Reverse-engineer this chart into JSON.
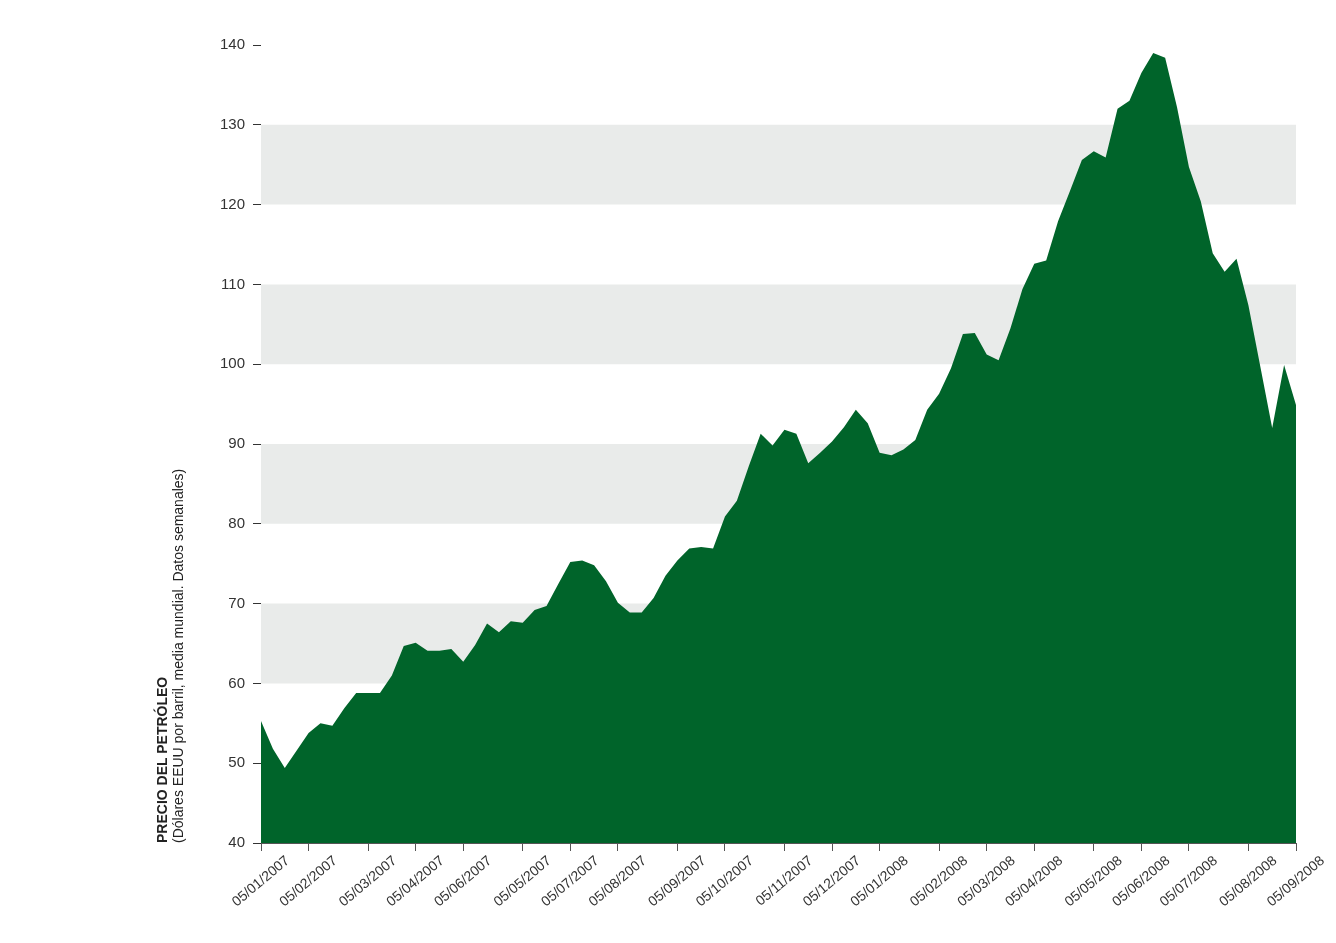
{
  "chart_data": {
    "type": "area",
    "ylabel": "PRECIO DEL PETRÓLEO\n(Dólares EEUU por barril, media mundial. Datos semanales)",
    "categories": [
      "05/01/2007",
      null,
      null,
      null,
      "05/02/2007",
      null,
      null,
      null,
      null,
      "05/03/2007",
      null,
      null,
      null,
      "05/04/2007",
      null,
      null,
      null,
      "05/06/2007",
      null,
      null,
      null,
      null,
      "05/05/2007",
      null,
      null,
      null,
      "05/07/2007",
      null,
      null,
      null,
      "05/08/2007",
      null,
      null,
      null,
      null,
      "05/09/2007",
      null,
      null,
      null,
      "05/10/2007",
      null,
      null,
      null,
      null,
      "05/11/2007",
      null,
      null,
      null,
      "05/12/2007",
      null,
      null,
      null,
      "05/01/2008",
      null,
      null,
      null,
      null,
      "05/02/2008",
      null,
      null,
      null,
      "05/03/2008",
      null,
      null,
      null,
      "05/04/2008",
      null,
      null,
      null,
      null,
      "05/05/2008",
      null,
      null,
      null,
      "05/06/2008",
      null,
      null,
      null,
      "05/07/2008",
      null,
      null,
      null,
      null,
      "05/08/2008",
      null,
      null,
      null,
      "05/09/2008"
    ],
    "values": [
      55.3,
      51.8,
      49.4,
      51.6,
      53.8,
      55.0,
      54.7,
      56.9,
      58.8,
      58.8,
      58.8,
      61.0,
      64.7,
      65.1,
      64.1,
      64.1,
      64.3,
      62.7,
      64.8,
      67.5,
      66.4,
      67.8,
      67.6,
      69.2,
      69.7,
      72.5,
      75.2,
      75.4,
      74.8,
      72.8,
      70.1,
      68.9,
      68.9,
      70.7,
      73.5,
      75.4,
      76.9,
      77.1,
      76.9,
      80.9,
      82.9,
      87.2,
      91.3,
      89.8,
      91.8,
      91.3,
      87.6,
      88.9,
      90.3,
      92.1,
      94.3,
      92.6,
      88.9,
      88.6,
      89.3,
      90.5,
      94.3,
      96.3,
      99.5,
      103.8,
      103.9,
      101.2,
      100.5,
      104.5,
      109.4,
      112.6,
      113.0,
      117.9,
      121.7,
      125.6,
      126.7,
      125.9,
      132.0,
      133.0,
      136.5,
      139.0,
      138.4,
      132.2,
      124.7,
      120.4,
      113.9,
      111.6,
      113.2,
      107.4,
      99.7,
      92.0,
      99.9,
      94.9
    ],
    "color": "#00642a",
    "ylim": [
      40,
      140
    ],
    "yticks": [
      40,
      50,
      60,
      70,
      80,
      90,
      100,
      110,
      120,
      130,
      140
    ],
    "bands": [
      {
        "axis": "y",
        "from": 60,
        "to": 70,
        "color": "#e9ebea"
      },
      {
        "axis": "y",
        "from": 80,
        "to": 90,
        "color": "#e9ebea"
      },
      {
        "axis": "y",
        "from": 100,
        "to": 110,
        "color": "#e9ebea"
      },
      {
        "axis": "y",
        "from": 120,
        "to": 130,
        "color": "#e9ebea"
      }
    ]
  }
}
